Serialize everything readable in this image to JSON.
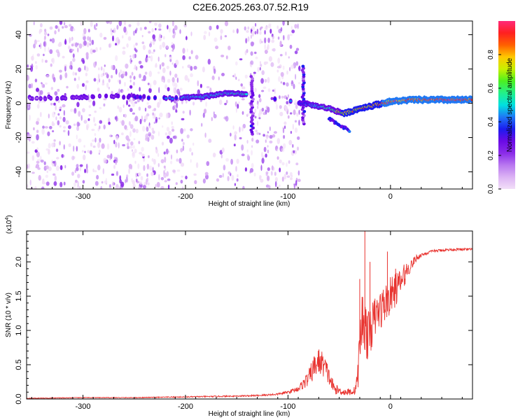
{
  "figure_title": "C2E6.2025.263.07.52.R19",
  "colors": {
    "snr_line": "#e8332f",
    "axes": "#000000",
    "spectrogram_cmap": [
      "#f2dff8",
      "#dcb3f4",
      "#b877f0",
      "#8a2be8",
      "#6a0ae6",
      "#1c1cf0",
      "#1e78f5",
      "#00e0e0",
      "#22f08a",
      "#4cf020",
      "#c8f000",
      "#ffc800",
      "#ff6000",
      "#ff2020",
      "#ff2a7a"
    ]
  },
  "chart_data": [
    {
      "type": "heatmap",
      "name": "spectrogram",
      "xlabel": "Height of straight line (km)",
      "ylabel": "Frequency (Hz)",
      "xlim": [
        -355,
        80
      ],
      "ylim": [
        -50,
        48
      ],
      "xticks": [
        -300,
        -200,
        -100,
        0
      ],
      "xtick_labels": [
        "-300",
        "-200",
        "-100",
        "0"
      ],
      "yticks": [
        -40,
        -20,
        0,
        20,
        40
      ],
      "ytick_labels": [
        "-40",
        "-20",
        "0",
        "20",
        "40"
      ],
      "colorbar": {
        "label": "Normalized spectral amplitude",
        "range": [
          0,
          1
        ],
        "ticks": [
          0.0,
          0.2,
          0.4,
          0.6,
          0.8
        ],
        "tick_labels": [
          "0.0",
          "0.2",
          "0.4",
          "0.6",
          "0.8"
        ]
      },
      "background_regions": [
        {
          "x_from": -355,
          "x_to": -205,
          "density": 1.0
        },
        {
          "x_from": -205,
          "x_to": -140,
          "density": 0.45
        },
        {
          "x_from": -140,
          "x_to": -88,
          "density": 1.0
        },
        {
          "x_from": -88,
          "x_to": 80,
          "density": 0.0
        }
      ],
      "signal_track": [
        {
          "x": -350,
          "f": 3,
          "amp": 0.2
        },
        {
          "x": -270,
          "f": 4,
          "amp": 0.25
        },
        {
          "x": -205,
          "f": 3,
          "amp": 0.45
        },
        {
          "x": -180,
          "f": 4,
          "amp": 0.48
        },
        {
          "x": -160,
          "f": 6,
          "amp": 0.5
        },
        {
          "x": -140,
          "f": 5,
          "amp": 0.55
        },
        {
          "x": -85,
          "f": 0,
          "amp": 0.35
        },
        {
          "x": -60,
          "f": -3,
          "amp": 0.55
        },
        {
          "x": -45,
          "f": -6,
          "amp": 0.75
        },
        {
          "x": -30,
          "f": -3,
          "amp": 0.8
        },
        {
          "x": -15,
          "f": -1,
          "amp": 0.85
        },
        {
          "x": 0,
          "f": 1,
          "amp": 0.9
        },
        {
          "x": 20,
          "f": 2,
          "amp": 0.92
        },
        {
          "x": 50,
          "f": 2,
          "amp": 0.95
        },
        {
          "x": 80,
          "f": 2,
          "amp": 0.95
        }
      ],
      "vertical_bursts": [
        {
          "x": -135,
          "f_from": -18,
          "f_to": 16,
          "amp": 0.25
        },
        {
          "x": -85,
          "f_from": -12,
          "f_to": 22,
          "amp": 0.3
        }
      ]
    },
    {
      "type": "line",
      "name": "snr",
      "xlabel": "Height of straight line (km)",
      "ylabel": "SNR (10 * v/v)",
      "y_multiplier_label": "(x10",
      "y_multiplier_exp": "4",
      "y_multiplier_close": ")",
      "xlim": [
        -355,
        80
      ],
      "ylim": [
        0,
        2.45
      ],
      "xticks": [
        -300,
        -200,
        -100,
        0
      ],
      "xtick_labels": [
        "-300",
        "-200",
        "-100",
        "0"
      ],
      "yticks": [
        0.0,
        0.5,
        1.0,
        1.5,
        2.0
      ],
      "ytick_labels": [
        "0.0",
        "0.5",
        "1.0",
        "1.5",
        "2.0"
      ],
      "units": "x10^4",
      "series": [
        {
          "name": "SNR",
          "x": [
            -355,
            -300,
            -250,
            -200,
            -160,
            -130,
            -110,
            -100,
            -90,
            -80,
            -75,
            -70,
            -65,
            -62,
            -58,
            -55,
            -50,
            -45,
            -40,
            -35,
            -32,
            -30,
            -28,
            -26,
            -24,
            -22,
            -20,
            -15,
            -10,
            -5,
            0,
            5,
            10,
            15,
            20,
            25,
            30,
            40,
            50,
            60,
            70,
            80
          ],
          "y": [
            0.01,
            0.02,
            0.02,
            0.03,
            0.04,
            0.05,
            0.07,
            0.1,
            0.15,
            0.3,
            0.45,
            0.55,
            0.5,
            0.4,
            0.25,
            0.15,
            0.12,
            0.1,
            0.1,
            0.12,
            0.3,
            0.8,
            1.1,
            1.2,
            1.0,
            0.9,
            1.0,
            1.2,
            1.3,
            1.4,
            1.5,
            1.6,
            1.7,
            1.85,
            1.95,
            2.05,
            2.1,
            2.15,
            2.17,
            2.18,
            2.18,
            2.18
          ],
          "noise": [
            0.005,
            0.005,
            0.005,
            0.008,
            0.01,
            0.012,
            0.015,
            0.02,
            0.04,
            0.12,
            0.18,
            0.2,
            0.18,
            0.15,
            0.12,
            0.08,
            0.06,
            0.05,
            0.05,
            0.06,
            0.2,
            0.35,
            0.45,
            0.5,
            0.4,
            0.35,
            0.35,
            0.3,
            0.3,
            0.28,
            0.28,
            0.25,
            0.2,
            0.15,
            0.08,
            0.05,
            0.03,
            0.02,
            0.02,
            0.02,
            0.02,
            0.02
          ],
          "spikes": [
            {
              "x": -25,
              "y": 2.5
            },
            {
              "x": -20,
              "y": 2.0
            },
            {
              "x": -3,
              "y": 2.15
            },
            {
              "x": 5,
              "y": 1.9
            },
            {
              "x": -30,
              "y": 1.75
            }
          ]
        }
      ]
    }
  ]
}
